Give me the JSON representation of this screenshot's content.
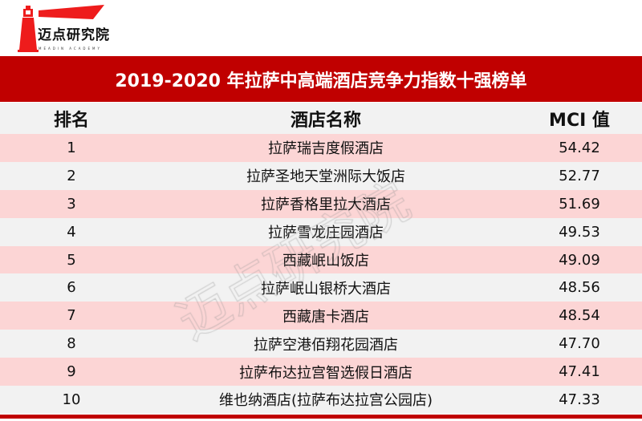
{
  "logo": {
    "name": "迈点研究院",
    "subtitle": "MEADIN ACADEMY"
  },
  "title": "2019-2020 年拉萨中高端酒店竞争力指数十强榜单",
  "table": {
    "headers": [
      "排名",
      "酒店名称",
      "MCI 值"
    ],
    "rows": [
      {
        "rank": "1",
        "name": "拉萨瑞吉度假酒店",
        "mci": "54.42"
      },
      {
        "rank": "2",
        "name": "拉萨圣地天堂洲际大饭店",
        "mci": "52.77"
      },
      {
        "rank": "3",
        "name": "拉萨香格里拉大酒店",
        "mci": "51.69"
      },
      {
        "rank": "4",
        "name": "拉萨雪龙庄园酒店",
        "mci": "49.53"
      },
      {
        "rank": "5",
        "name": "西藏岷山饭店",
        "mci": "49.09"
      },
      {
        "rank": "6",
        "name": "拉萨岷山银桥大酒店",
        "mci": "48.56"
      },
      {
        "rank": "7",
        "name": "西藏唐卡酒店",
        "mci": "48.54"
      },
      {
        "rank": "8",
        "name": "拉萨空港佰翔花园酒店",
        "mci": "47.70"
      },
      {
        "rank": "9",
        "name": "拉萨布达拉宫智选假日酒店",
        "mci": "47.41"
      },
      {
        "rank": "10",
        "name": "维也纳酒店(拉萨布达拉宫公园店)",
        "mci": "47.33"
      }
    ]
  },
  "watermark": "迈点研究院",
  "colors": {
    "brand_red": "#c00000",
    "row_pink": "#fcd5d5",
    "row_gray": "#f2f2f2"
  }
}
